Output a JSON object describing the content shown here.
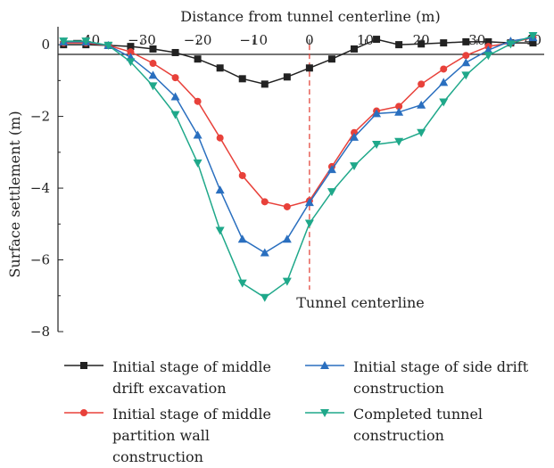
{
  "chart_data": {
    "type": "line",
    "title": "",
    "xlabel": "Distance from tunnel centerline (m)",
    "ylabel": "Surface settlement (m)",
    "xlim": [
      -45,
      42
    ],
    "ylim": [
      -8,
      0.5
    ],
    "x_ticks": [
      "-40",
      "-30",
      "-20",
      "-10",
      "0",
      "10",
      "20",
      "30",
      "40"
    ],
    "y_ticks": [
      "0",
      "-2",
      "-4",
      "-6",
      "-8"
    ],
    "annotation": "Tunnel centerline",
    "centerline_x": 0,
    "series": [
      {
        "name": "Initial stage of middle drift excavation",
        "color": "#222222",
        "marker": "square",
        "x": [
          -44,
          -40,
          -36,
          -32,
          -28,
          -24,
          -20,
          -16,
          -12,
          -8,
          -4,
          0,
          4,
          8,
          12,
          16,
          20,
          24,
          28,
          32,
          36,
          40
        ],
        "y": [
          0.0,
          0.0,
          -0.02,
          -0.05,
          -0.12,
          -0.22,
          -0.4,
          -0.65,
          -0.95,
          -1.1,
          -0.9,
          -0.65,
          -0.4,
          -0.12,
          0.15,
          0.0,
          0.02,
          0.05,
          0.08,
          0.08,
          0.05,
          0.05
        ]
      },
      {
        "name": "Initial stage of middle partition wall construction",
        "color": "#e8413a",
        "marker": "circle",
        "x": [
          -44,
          -40,
          -36,
          -32,
          -28,
          -24,
          -20,
          -16,
          -12,
          -8,
          -4,
          0,
          4,
          8,
          12,
          16,
          20,
          24,
          28,
          32,
          36,
          40
        ],
        "y": [
          0.05,
          0.05,
          -0.02,
          -0.2,
          -0.52,
          -0.92,
          -1.58,
          -2.6,
          -3.65,
          -4.38,
          -4.52,
          -4.35,
          -3.4,
          -2.45,
          -1.85,
          -1.72,
          -1.1,
          -0.68,
          -0.3,
          -0.05,
          0.05,
          0.2
        ]
      },
      {
        "name": "Initial stage of side drift construction",
        "color": "#2a6fbf",
        "marker": "triangle-up",
        "x": [
          -44,
          -40,
          -36,
          -32,
          -28,
          -24,
          -20,
          -16,
          -12,
          -8,
          -4,
          0,
          4,
          8,
          12,
          16,
          20,
          24,
          28,
          32,
          36,
          40
        ],
        "y": [
          0.08,
          0.08,
          -0.02,
          -0.35,
          -0.85,
          -1.45,
          -2.52,
          -4.05,
          -5.42,
          -5.8,
          -5.42,
          -4.4,
          -3.48,
          -2.58,
          -1.92,
          -1.88,
          -1.68,
          -1.05,
          -0.5,
          -0.15,
          0.1,
          0.2
        ]
      },
      {
        "name": "Completed tunnel construction",
        "color": "#1fa88a",
        "marker": "triangle-down",
        "x": [
          -44,
          -40,
          -36,
          -32,
          -28,
          -24,
          -20,
          -16,
          -12,
          -8,
          -4,
          0,
          4,
          8,
          12,
          16,
          20,
          24,
          28,
          32,
          36,
          40
        ],
        "y": [
          0.1,
          0.1,
          -0.02,
          -0.48,
          -1.15,
          -1.95,
          -3.3,
          -5.18,
          -6.65,
          -7.05,
          -6.6,
          -4.98,
          -4.1,
          -3.38,
          -2.78,
          -2.7,
          -2.45,
          -1.6,
          -0.85,
          -0.3,
          0.02,
          0.25
        ]
      }
    ]
  },
  "legend": {
    "item0": {
      "line1": "Initial stage of middle",
      "line2": "drift excavation",
      "line3": ""
    },
    "item1": {
      "line1": "Initial stage of middle",
      "line2": "partition wall",
      "line3": "construction"
    },
    "item2": {
      "line1": "Initial stage of side drift",
      "line2": "construction",
      "line3": ""
    },
    "item3": {
      "line1": "Completed tunnel",
      "line2": "construction",
      "line3": ""
    }
  }
}
